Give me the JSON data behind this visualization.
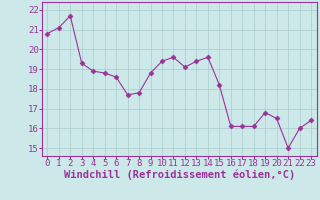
{
  "x": [
    0,
    1,
    2,
    3,
    4,
    5,
    6,
    7,
    8,
    9,
    10,
    11,
    12,
    13,
    14,
    15,
    16,
    17,
    18,
    19,
    20,
    21,
    22,
    23
  ],
  "y": [
    20.8,
    21.1,
    21.7,
    19.3,
    18.9,
    18.8,
    18.6,
    17.7,
    17.8,
    18.8,
    19.4,
    19.6,
    19.1,
    19.4,
    19.6,
    18.2,
    16.1,
    16.1,
    16.1,
    16.8,
    16.5,
    15.0,
    16.0,
    16.4
  ],
  "line_color": "#993399",
  "marker": "D",
  "markersize": 2.5,
  "linewidth": 0.8,
  "background_color": "#cce8e8",
  "grid_color": "#aacccc",
  "xlabel": "Windchill (Refroidissement éolien,°C)",
  "xlabel_color": "#993399",
  "tick_color": "#993399",
  "yticks": [
    15,
    16,
    17,
    18,
    19,
    20,
    21,
    22
  ],
  "xticks": [
    0,
    1,
    2,
    3,
    4,
    5,
    6,
    7,
    8,
    9,
    10,
    11,
    12,
    13,
    14,
    15,
    16,
    17,
    18,
    19,
    20,
    21,
    22,
    23
  ],
  "ylim": [
    14.6,
    22.4
  ],
  "xlim": [
    -0.5,
    23.5
  ],
  "spine_color": "#993399",
  "tick_fontsize": 6.5,
  "xlabel_fontsize": 7.5
}
